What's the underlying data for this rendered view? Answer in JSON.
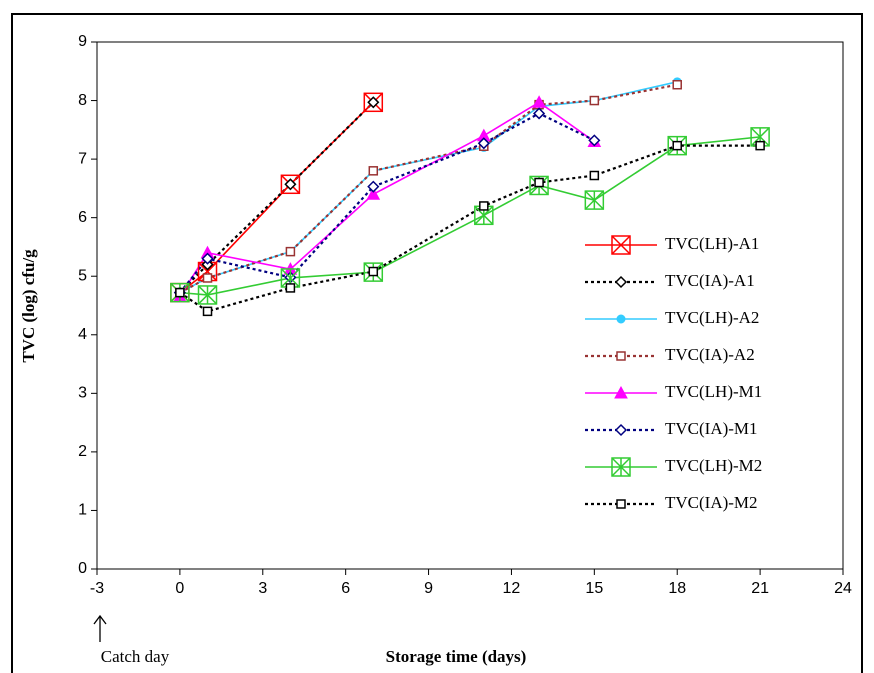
{
  "chart_data": {
    "type": "line",
    "x_label": "Storage time (days)",
    "y_label": "TVC (log) cfu/g",
    "annotation": "Catch day",
    "xlim": [
      -3,
      24
    ],
    "xticks": [
      -3,
      0,
      3,
      6,
      9,
      12,
      15,
      18,
      21,
      24
    ],
    "ylim": [
      0,
      9
    ],
    "yticks": [
      0,
      1,
      2,
      3,
      4,
      5,
      6,
      7,
      8,
      9
    ],
    "legend": "right",
    "series": [
      {
        "name": "TVC(LH)-A1",
        "color": "#ff0000",
        "marker": "square-x",
        "dashed": false,
        "x": [
          0,
          1,
          4,
          7
        ],
        "values": [
          4.72,
          5.08,
          6.57,
          7.97
        ]
      },
      {
        "name": "TVC(IA)-A1",
        "color": "#000000",
        "marker": "diamond",
        "dashed": true,
        "x": [
          0,
          1,
          4,
          7
        ],
        "values": [
          4.72,
          5.2,
          6.57,
          7.97
        ]
      },
      {
        "name": "TVC(LH)-A2",
        "color": "#33ccff",
        "marker": "circle",
        "dashed": false,
        "x": [
          0,
          1,
          4,
          7,
          11,
          13,
          15,
          18
        ],
        "values": [
          4.72,
          4.97,
          5.42,
          6.8,
          7.2,
          7.9,
          8.0,
          8.32
        ]
      },
      {
        "name": "TVC(IA)-A2",
        "color": "#993333",
        "marker": "square",
        "dashed": true,
        "x": [
          0,
          1,
          4,
          7,
          11,
          13,
          15,
          18
        ],
        "values": [
          4.72,
          4.97,
          5.42,
          6.8,
          7.22,
          7.93,
          8.0,
          8.27
        ]
      },
      {
        "name": "TVC(LH)-M1",
        "color": "#ff00ff",
        "marker": "triangle",
        "dashed": false,
        "x": [
          0,
          1,
          4,
          7,
          11,
          13,
          15
        ],
        "values": [
          4.65,
          5.4,
          5.12,
          6.4,
          7.4,
          7.97,
          7.3
        ]
      },
      {
        "name": "TVC(IA)-M1",
        "color": "#000080",
        "marker": "diamond",
        "dashed": true,
        "x": [
          0,
          1,
          4,
          7,
          11,
          13,
          15
        ],
        "values": [
          4.72,
          5.3,
          4.98,
          6.53,
          7.27,
          7.78,
          7.32
        ]
      },
      {
        "name": "TVC(LH)-M2",
        "color": "#33cc33",
        "marker": "square-star",
        "dashed": false,
        "x": [
          0,
          1,
          4,
          7,
          11,
          13,
          15,
          18,
          21
        ],
        "values": [
          4.72,
          4.68,
          4.97,
          5.07,
          6.04,
          6.55,
          6.3,
          7.23,
          7.38
        ]
      },
      {
        "name": "TVC(IA)-M2",
        "color": "#000000",
        "marker": "square",
        "dashed": true,
        "x": [
          0,
          1,
          4,
          7,
          11,
          13,
          15,
          18,
          21
        ],
        "values": [
          4.72,
          4.4,
          4.8,
          5.08,
          6.2,
          6.6,
          6.72,
          7.23,
          7.23
        ]
      }
    ]
  }
}
